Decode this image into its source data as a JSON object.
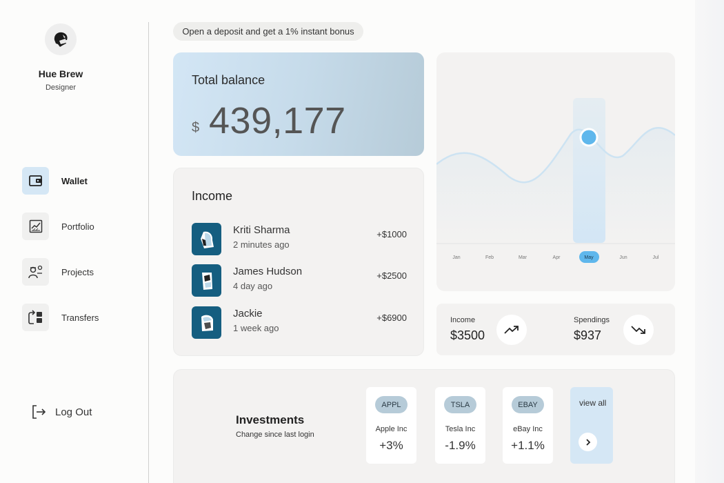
{
  "user": {
    "name": "Hue Brew",
    "role": "Designer",
    "avatar_icon": "user-avatar-icon"
  },
  "nav": {
    "items": [
      {
        "label": "Wallet",
        "icon": "wallet-icon",
        "active": true
      },
      {
        "label": "Portfolio",
        "icon": "chart-icon",
        "active": false
      },
      {
        "label": "Projects",
        "icon": "team-icon",
        "active": false
      },
      {
        "label": "Transfers",
        "icon": "transfer-icon",
        "active": false
      }
    ],
    "logout_label": "Log Out"
  },
  "promo": {
    "text": "Open a deposit and get a 1% instant bonus"
  },
  "balance": {
    "title": "Total balance",
    "currency": "$",
    "amount": "439,177"
  },
  "income": {
    "title": "Income",
    "transactions": [
      {
        "name": "Kriti Sharma",
        "time": "2 minutes ago",
        "amount": "+$1000"
      },
      {
        "name": "James Hudson",
        "time": "4 day ago",
        "amount": "+$2500"
      },
      {
        "name": "Jackie",
        "time": "1 week ago",
        "amount": "+$6900"
      }
    ]
  },
  "chart": {
    "months": [
      "Jan",
      "Feb",
      "Mar",
      "Apr",
      "May",
      "Jun",
      "Jul"
    ],
    "selected_month": "May"
  },
  "stats": {
    "income_label": "Income",
    "income_value": "$3500",
    "spendings_label": "Spendings",
    "spendings_value": "$937"
  },
  "investments": {
    "title": "Investments",
    "subtitle": "Change since last login",
    "stocks": [
      {
        "ticker": "APPL",
        "name": "Apple Inc",
        "change": "+3%"
      },
      {
        "ticker": "TSLA",
        "name": "Tesla Inc",
        "change": "-1.9%"
      },
      {
        "ticker": "EBAY",
        "name": "eBay Inc",
        "change": "+1.1%"
      }
    ],
    "view_all_label": "view all"
  },
  "colors": {
    "accent": "#5fb7ec",
    "active_nav": "#d5e7f5",
    "ticker_bg": "#b6cbd8",
    "avatar_bg": "#155e80"
  }
}
